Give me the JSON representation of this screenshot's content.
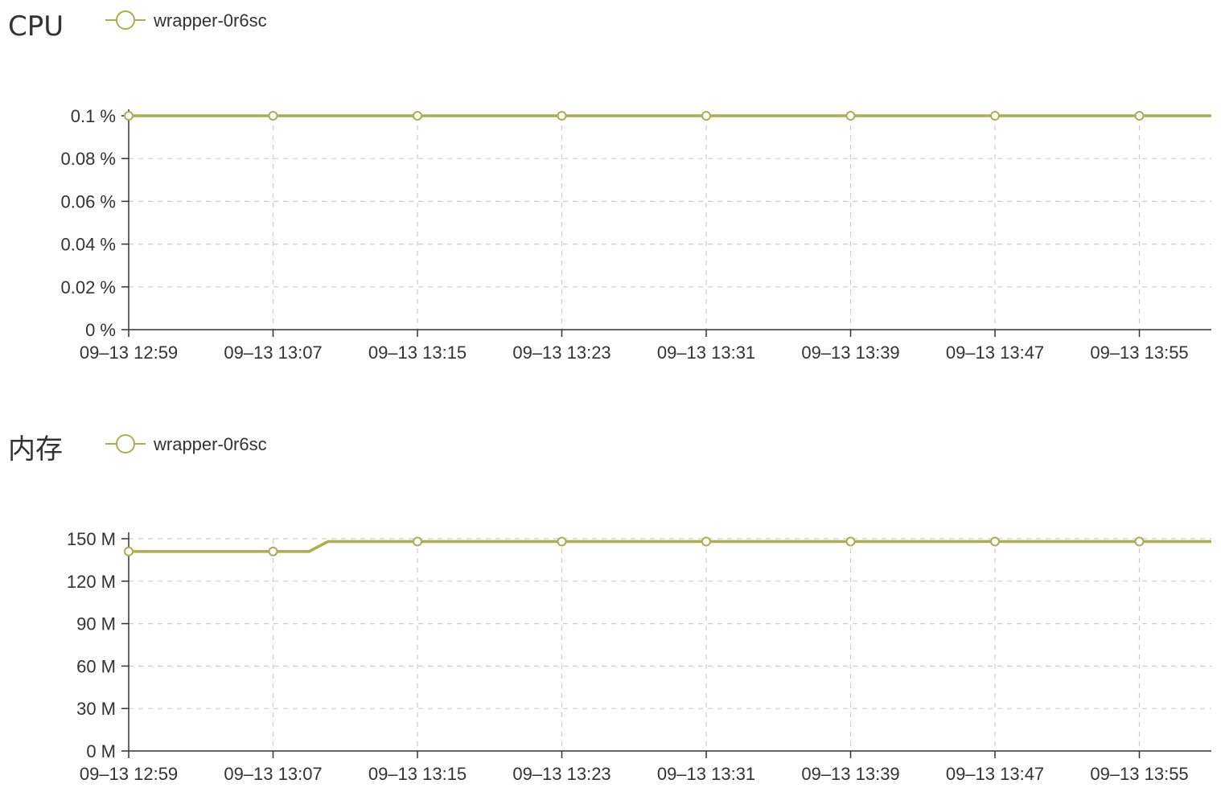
{
  "colors": {
    "series": "#a9ae4f",
    "axis": "#333333",
    "grid": "#cccccc",
    "text": "#333333",
    "marker_fill": "#ffffff"
  },
  "icons": {
    "legend": "line-with-hollow-circle-icon"
  },
  "chart_data": [
    {
      "type": "line",
      "title": "CPU",
      "legend_position": "top-left",
      "grid": true,
      "unit": "%",
      "x": [
        "09-13 12:59",
        "09-13 13:07",
        "09-13 13:15",
        "09-13 13:23",
        "09-13 13:31",
        "09-13 13:39",
        "09-13 13:47",
        "09-13 13:55"
      ],
      "x_tick_labels": [
        "09–13 12:59",
        "09–13 13:07",
        "09–13 13:15",
        "09–13 13:23",
        "09–13 13:31",
        "09–13 13:39",
        "09–13 13:47",
        "09–13 13:55"
      ],
      "y_ticks": [
        0,
        0.02,
        0.04,
        0.06,
        0.08,
        0.1
      ],
      "y_tick_labels": [
        "0 %",
        "0.02 %",
        "0.04 %",
        "0.06 %",
        "0.08 %",
        "0.1 %"
      ],
      "ylim": [
        0,
        0.1
      ],
      "series": [
        {
          "name": "wrapper-0r6sc",
          "values": [
            0.1,
            0.1,
            0.1,
            0.1,
            0.1,
            0.1,
            0.1,
            0.1
          ]
        }
      ]
    },
    {
      "type": "line",
      "title": "内存",
      "legend_position": "top-left",
      "grid": true,
      "unit": "M",
      "x": [
        "09-13 12:59",
        "09-13 13:07",
        "09-13 13:15",
        "09-13 13:23",
        "09-13 13:31",
        "09-13 13:39",
        "09-13 13:47",
        "09-13 13:55"
      ],
      "x_tick_labels": [
        "09–13 12:59",
        "09–13 13:07",
        "09–13 13:15",
        "09–13 13:23",
        "09–13 13:31",
        "09–13 13:39",
        "09–13 13:47",
        "09–13 13:55"
      ],
      "y_ticks": [
        0,
        30,
        60,
        90,
        120,
        150
      ],
      "y_tick_labels": [
        "0 M",
        "30 M",
        "60 M",
        "90 M",
        "120 M",
        "150 M"
      ],
      "ylim": [
        0,
        150
      ],
      "series": [
        {
          "name": "wrapper-0r6sc",
          "values": [
            141,
            141,
            148,
            148,
            148,
            148,
            148,
            148
          ]
        }
      ]
    }
  ]
}
